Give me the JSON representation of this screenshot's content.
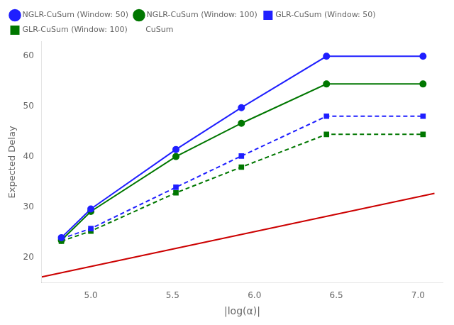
{
  "chart_data": {
    "type": "line",
    "xlabel": "|log(α)|",
    "ylabel": "Expected Delay",
    "xlim": [
      4.7,
      7.15
    ],
    "ylim": [
      15,
      63
    ],
    "xticks": [
      {
        "value": 5.0,
        "label": "5.0"
      },
      5.5,
      {
        "value": 6.0,
        "label": "6.0"
      },
      6.5,
      {
        "value": 7.0,
        "label": "7.0"
      }
    ],
    "yticks": [
      20,
      30,
      40,
      50,
      60
    ],
    "grid": false,
    "legend": "upper left",
    "series": [
      {
        "name": "NGLR-CuSum (Window: 50)",
        "color": "#1f1fff",
        "marker": "circle",
        "line_style": "solid",
        "x": [
          4.82,
          5.0,
          5.52,
          5.92,
          6.44,
          7.03
        ],
        "values": [
          24.0,
          29.7,
          41.5,
          49.8,
          60.0,
          60.0
        ]
      },
      {
        "name": "NGLR-CuSum (Window: 100)",
        "color": "#007700",
        "marker": "circle",
        "line_style": "solid",
        "x": [
          4.82,
          5.0,
          5.52,
          5.92,
          6.44,
          7.03
        ],
        "values": [
          23.5,
          29.2,
          40.1,
          46.7,
          54.5,
          54.5
        ]
      },
      {
        "name": "GLR-CuSum (Window: 50)",
        "color": "#1f1fff",
        "marker": "square",
        "line_style": "dashed",
        "x": [
          4.82,
          5.0,
          5.52,
          5.92,
          6.44,
          7.03
        ],
        "values": [
          23.8,
          25.8,
          34.0,
          40.2,
          48.1,
          48.1
        ]
      },
      {
        "name": "GLR-CuSum (Window: 100)",
        "color": "#007700",
        "marker": "square",
        "line_style": "dashed",
        "x": [
          4.82,
          5.0,
          5.52,
          5.92,
          6.44,
          7.03
        ],
        "values": [
          23.3,
          25.3,
          32.9,
          38.0,
          44.5,
          44.5
        ]
      },
      {
        "name": "CuSum",
        "color": "#cc0000",
        "marker": "none",
        "line_style": "solid",
        "x": [
          4.7,
          7.1
        ],
        "values": [
          16.2,
          32.8
        ]
      }
    ]
  }
}
